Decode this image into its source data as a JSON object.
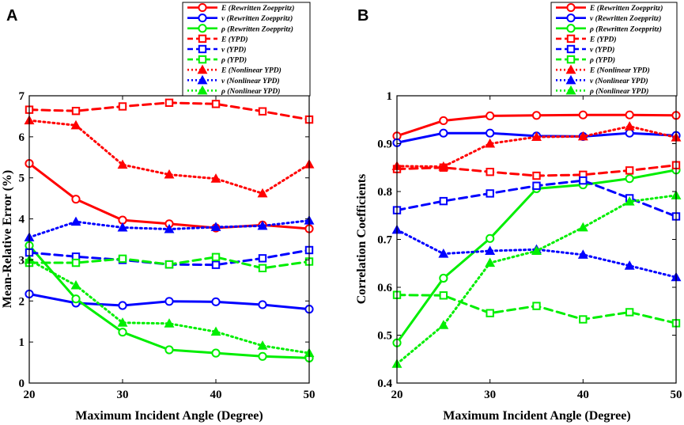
{
  "chart_data": [
    {
      "panel": "A",
      "type": "line",
      "xlabel": "Maximum Incident Angle (Degree)",
      "ylabel": "Mean-Relative Error (%)",
      "xlim": [
        20,
        50
      ],
      "ylim": [
        0,
        7
      ],
      "xticks": [
        "20",
        "30",
        "40",
        "50"
      ],
      "yticks": [
        "0",
        "1",
        "2",
        "3",
        "4",
        "5",
        "6",
        "7"
      ],
      "x": [
        20,
        25,
        30,
        35,
        40,
        45,
        50
      ],
      "legend_position": "top-right",
      "series": [
        {
          "name": "E (Rewritten Zoeppritz)",
          "color": "#ff0000",
          "style": "solid",
          "marker": "circle",
          "values": [
            5.35,
            4.48,
            3.97,
            3.88,
            3.78,
            3.85,
            3.76
          ]
        },
        {
          "name": "v (Rewritten Zoeppritz)",
          "color": "#0000ff",
          "style": "solid",
          "marker": "circle",
          "values": [
            2.17,
            1.95,
            1.89,
            1.99,
            1.98,
            1.91,
            1.8
          ]
        },
        {
          "name": "ρ (Rewritten Zoeppritz)",
          "color": "#00ee00",
          "style": "solid",
          "marker": "circle",
          "values": [
            3.35,
            2.05,
            1.24,
            0.81,
            0.73,
            0.65,
            0.61
          ]
        },
        {
          "name": "E (YPD)",
          "color": "#ff0000",
          "style": "dashed",
          "marker": "square",
          "values": [
            6.66,
            6.63,
            6.74,
            6.83,
            6.8,
            6.62,
            6.42
          ]
        },
        {
          "name": "v (YPD)",
          "color": "#0000ff",
          "style": "dashed",
          "marker": "square",
          "values": [
            3.18,
            3.08,
            3.0,
            2.89,
            2.88,
            3.04,
            3.24
          ]
        },
        {
          "name": "ρ (YPD)",
          "color": "#00ee00",
          "style": "dashed",
          "marker": "square",
          "values": [
            2.93,
            2.93,
            3.03,
            2.89,
            3.07,
            2.8,
            2.96
          ]
        },
        {
          "name": "E (Nonlinear YPD)",
          "color": "#ff0000",
          "style": "dotted",
          "marker": "triangle",
          "values": [
            6.4,
            6.28,
            5.32,
            5.08,
            4.98,
            4.62,
            5.33
          ]
        },
        {
          "name": "v (Nonlinear YPD)",
          "color": "#0000ff",
          "style": "dotted",
          "marker": "triangle",
          "values": [
            3.55,
            3.93,
            3.79,
            3.75,
            3.8,
            3.83,
            3.96
          ]
        },
        {
          "name": "ρ (Nonlinear YPD)",
          "color": "#00ee00",
          "style": "dotted",
          "marker": "triangle",
          "values": [
            3.0,
            2.38,
            1.47,
            1.45,
            1.25,
            0.91,
            0.73
          ]
        }
      ]
    },
    {
      "panel": "B",
      "type": "line",
      "xlabel": "Maximum Incident Angle (Degree)",
      "ylabel": "Correlation Coefficients",
      "xlim": [
        20,
        50
      ],
      "ylim": [
        0.4,
        1.0
      ],
      "xticks": [
        "20",
        "30",
        "40",
        "50"
      ],
      "yticks": [
        "0.4",
        "0.5",
        "0.6",
        "0.7",
        "0.8",
        "0.9",
        "1"
      ],
      "x": [
        20,
        25,
        30,
        35,
        40,
        45,
        50
      ],
      "legend_position": "top-right",
      "series": [
        {
          "name": "E (Rewritten Zoeppritz)",
          "color": "#ff0000",
          "style": "solid",
          "marker": "circle",
          "values": [
            0.916,
            0.948,
            0.958,
            0.959,
            0.96,
            0.96,
            0.959
          ]
        },
        {
          "name": "v (Rewritten Zoeppritz)",
          "color": "#0000ff",
          "style": "solid",
          "marker": "circle",
          "values": [
            0.902,
            0.922,
            0.922,
            0.916,
            0.915,
            0.922,
            0.917
          ]
        },
        {
          "name": "ρ (Rewritten Zoeppritz)",
          "color": "#00ee00",
          "style": "solid",
          "marker": "circle",
          "values": [
            0.484,
            0.619,
            0.702,
            0.806,
            0.814,
            0.827,
            0.845
          ]
        },
        {
          "name": "E (YPD)",
          "color": "#ff0000",
          "style": "dashed",
          "marker": "square",
          "values": [
            0.847,
            0.85,
            0.841,
            0.833,
            0.835,
            0.844,
            0.855
          ]
        },
        {
          "name": "v (YPD)",
          "color": "#0000ff",
          "style": "dashed",
          "marker": "square",
          "values": [
            0.761,
            0.78,
            0.796,
            0.812,
            0.823,
            0.786,
            0.748
          ]
        },
        {
          "name": "ρ (YPD)",
          "color": "#00ee00",
          "style": "dashed",
          "marker": "square",
          "values": [
            0.584,
            0.583,
            0.546,
            0.561,
            0.533,
            0.548,
            0.525
          ]
        },
        {
          "name": "E (Nonlinear YPD)",
          "color": "#ff0000",
          "style": "dotted",
          "marker": "triangle",
          "values": [
            0.853,
            0.852,
            0.9,
            0.914,
            0.915,
            0.936,
            0.913
          ]
        },
        {
          "name": "v (Nonlinear YPD)",
          "color": "#0000ff",
          "style": "dotted",
          "marker": "triangle",
          "values": [
            0.72,
            0.67,
            0.676,
            0.679,
            0.668,
            0.645,
            0.621
          ]
        },
        {
          "name": "ρ (Nonlinear YPD)",
          "color": "#00ee00",
          "style": "dotted",
          "marker": "triangle",
          "values": [
            0.44,
            0.521,
            0.651,
            0.676,
            0.725,
            0.779,
            0.792
          ]
        }
      ]
    }
  ]
}
